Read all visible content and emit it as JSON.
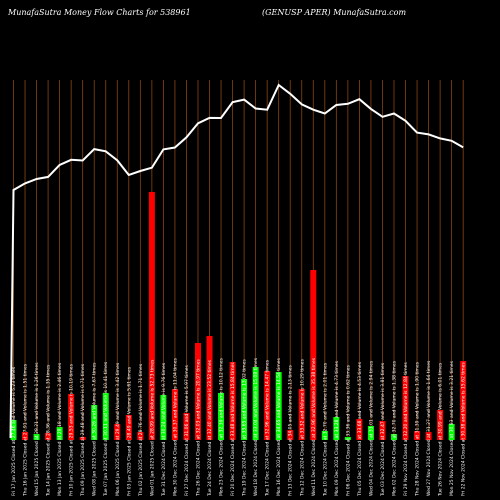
{
  "title_left": "MunafaSutra  Money Flow  Charts for 538961",
  "title_right": "(GENUSP                    APER) MunafaSutra.com",
  "colors": {
    "background": "#000000",
    "grid": "#8b4513",
    "price_line": "#ffffff",
    "up": "#00ff00",
    "down": "#ff0000"
  },
  "chart_data": {
    "type": "bar",
    "title": "MunafaSutra  Money Flow  Charts for 538961 (GENUSPAPER) MunafaSutra.com",
    "grid": true,
    "categories": [
      "Fri 17 Jan 2025 Closed at 27.46 and Volume is 5.23 times",
      "Thu 16 Jan 2025 Closed at 27.91 and Volume is 1.51 times",
      "Wed 15 Jan 2025 Closed at 28.21 and Volume is 1.26 times",
      "Tue 14 Jan 2025 Closed at 28.36 and Volume is 1.35 times",
      "Mon 13 Jan 2025 Closed at 29.18 and Volume is 2.46 times",
      "Fri 10 Jan 2025 Closed at 29.53 and Volume is 10.19 times",
      "Thu 09 Jan 2025 Closed at 29.48 and Volume is 0.71 times",
      "Wed 08 Jan 2025 Closed at 30.26 and Volume is 7.67 times",
      "Tue 07 Jan 2025 Closed at 30.11 and Volume is 10.41 times",
      "Mon 06 Jan 2025 Closed at 29.49 and Volume is 3.42 times",
      "Fri 03 Jan 2025 Closed at 28.49 and Volume is 5.61 times",
      "Thu 02 Jan 2025 Closed at 28.76 and Volume is 1.71 times",
      "Wed 01 Jan 2025 Closed at 28.99 and Volume is 52.73 times",
      "Tue 31 Dec 2024 Closed at 30.24 and Volume is 9.76 times",
      "Mon 30 Dec 2024 Closed at 30.37 and Volume is 11.04 times",
      "Fri 27 Dec 2024 Closed at 31.06 and Volume is 5.97 times",
      "Thu 26 Dec 2024 Closed at 32.03 and Volume is 20.97 times",
      "Tue 24 Dec 2024 Closed at 32.40 and Volume is 23.52 times",
      "Mon 23 Dec 2024 Closed at 32.39 and Volume is 10.12 times",
      "Fri 20 Dec 2024 Closed at 33.48 and Volume is 15.84 times",
      "Thu 19 Dec 2024 Closed at 33.65 and Volume is 13.02 times",
      "Wed 18 Dec 2024 Closed at 33.04 and Volume is 15.08 times",
      "Tue 17 Dec 2024 Closed at 32.96 and Volume is 14.47 times",
      "Mon 16 Dec 2024 Closed at 34.65 and Volume is 14.54 times",
      "Fri 13 Dec 2024 Closed at 34.05 and Volume is 2.13 times",
      "Thu 12 Dec 2024 Closed at 33.32 and Volume is 10.29 times",
      "Wed 11 Dec 2024 Closed at 32.96 and Volume is 35.38 times",
      "Tue 10 Dec 2024 Closed at 32.70 and Volume is 2.01 times",
      "Mon 09 Dec 2024 Closed at 33.28 and Volume is 4.73 times",
      "Fri 06 Dec 2024 Closed at 33.36 and Volume is 0.62 times",
      "Thu 05 Dec 2024 Closed at 33.68 and Volume is 4.53 times",
      "Wed 04 Dec 2024 Closed at 33.01 and Volume is 2.94 times",
      "Tue 03 Dec 2024 Closed at 32.47 and Volume is 3.81 times",
      "Mon 02 Dec 2024 Closed at 32.70 and Volume is 1.38 times",
      "Fri 29 Nov 2024 Closed at 32.20 and Volume is 12.84 times",
      "Thu 28 Nov 2024 Closed at 31.39 and Volume is 1.90 times",
      "Wed 27 Nov 2024 Closed at 31.27 and Volume is 1.64 times",
      "Tue 26 Nov 2024 Closed at 30.99 and Volume is 6.01 times",
      "Mon 25 Nov 2024 Closed at 30.83 and Volume is 3.21 times",
      "Fri 22 Nov 2024 Closed at 30.38 and Volume is 15.62 times"
    ],
    "bar_heights": [
      20,
      8,
      6,
      7,
      13,
      46,
      3,
      35,
      47,
      16,
      25,
      8,
      248,
      45,
      51,
      27,
      97,
      104,
      47,
      78,
      61,
      73,
      69,
      68,
      10,
      51,
      170,
      9,
      23,
      3,
      21,
      14,
      19,
      6,
      64,
      9,
      8,
      30,
      16,
      79
    ],
    "bar_direction": [
      "up",
      "down",
      "up",
      "down",
      "up",
      "down",
      "down",
      "up",
      "up",
      "down",
      "down",
      "down",
      "down",
      "up",
      "down",
      "down",
      "down",
      "down",
      "up",
      "down",
      "up",
      "up",
      "down",
      "up",
      "down",
      "down",
      "down",
      "up",
      "up",
      "up",
      "down",
      "up",
      "down",
      "up",
      "down",
      "down",
      "down",
      "down",
      "up",
      "down"
    ],
    "close_line": [
      27.46,
      27.91,
      28.21,
      28.36,
      29.18,
      29.53,
      29.48,
      30.26,
      30.11,
      29.49,
      28.49,
      28.76,
      28.99,
      30.24,
      30.37,
      31.06,
      32.03,
      32.4,
      32.39,
      33.48,
      33.65,
      33.04,
      32.96,
      34.65,
      34.05,
      33.32,
      32.96,
      32.7,
      33.28,
      33.36,
      33.68,
      33.01,
      32.47,
      32.7,
      32.2,
      31.39,
      31.27,
      30.99,
      30.83,
      30.38
    ]
  }
}
